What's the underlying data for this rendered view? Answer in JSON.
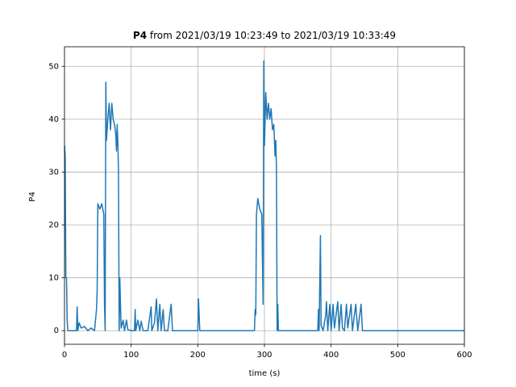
{
  "chart_data": {
    "type": "line",
    "title": {
      "variable": "P4",
      "range": "from 2021/03/19 10:23:49 to 2021/03/19 10:33:49"
    },
    "x_label": "time (s)",
    "y_label": "P4",
    "x": [
      0,
      1,
      2,
      3,
      4,
      5,
      18,
      19,
      20,
      22,
      25,
      30,
      35,
      40,
      45,
      48,
      49,
      50,
      53,
      56,
      59,
      60,
      61,
      62,
      63,
      65,
      67,
      69,
      71,
      73,
      75,
      77,
      78,
      79,
      80,
      81,
      82,
      83,
      84,
      85,
      88,
      90,
      93,
      95,
      100,
      105,
      106,
      107,
      110,
      113,
      115,
      118,
      125,
      130,
      131,
      135,
      138,
      140,
      143,
      145,
      148,
      150,
      155,
      160,
      162,
      200,
      201,
      203,
      285,
      286,
      287,
      288,
      290,
      293,
      296,
      298,
      299,
      300,
      302,
      304,
      306,
      308,
      310,
      312,
      314,
      316,
      317,
      318,
      319,
      320,
      321,
      380,
      381,
      382,
      384,
      385,
      388,
      392,
      393,
      395,
      398,
      400,
      403,
      405,
      410,
      412,
      415,
      417,
      420,
      423,
      425,
      430,
      432,
      437,
      440,
      445,
      447,
      600
    ],
    "series": [
      {
        "name": "P4",
        "color": "#1f77b4",
        "values": [
          35,
          33,
          10,
          10,
          2,
          0,
          0,
          4.5,
          0,
          1.5,
          0.5,
          0.8,
          0,
          0.5,
          0,
          4,
          7.5,
          24,
          23,
          24,
          22,
          5,
          0,
          47,
          36,
          40,
          43,
          38,
          43,
          40,
          39,
          37,
          34,
          39,
          36,
          30,
          0,
          10,
          5,
          0.5,
          2,
          0,
          2,
          0.2,
          0,
          0,
          4,
          0,
          2,
          0,
          1.8,
          0,
          0,
          4.5,
          0,
          1.5,
          6,
          0,
          5,
          0,
          4,
          0,
          0,
          5,
          0,
          0,
          6,
          0,
          0,
          4,
          3,
          22,
          25,
          23,
          22,
          5,
          51,
          35,
          45,
          40,
          43,
          40,
          42,
          38,
          39,
          33,
          36,
          31,
          0,
          5,
          0,
          0,
          4,
          0,
          18,
          1,
          0,
          3,
          5.5,
          0,
          5,
          0,
          5,
          0.5,
          5.5,
          0,
          5,
          0.5,
          0,
          5,
          0.5,
          5,
          0,
          5,
          0,
          5,
          0,
          0
        ]
      }
    ],
    "xlim": [
      0,
      600
    ],
    "ylim": [
      -2.57,
      53.7
    ],
    "xticks": [
      0,
      100,
      200,
      300,
      400,
      500,
      600
    ],
    "yticks": [
      0,
      10,
      20,
      30,
      40,
      50
    ],
    "grid": true
  }
}
